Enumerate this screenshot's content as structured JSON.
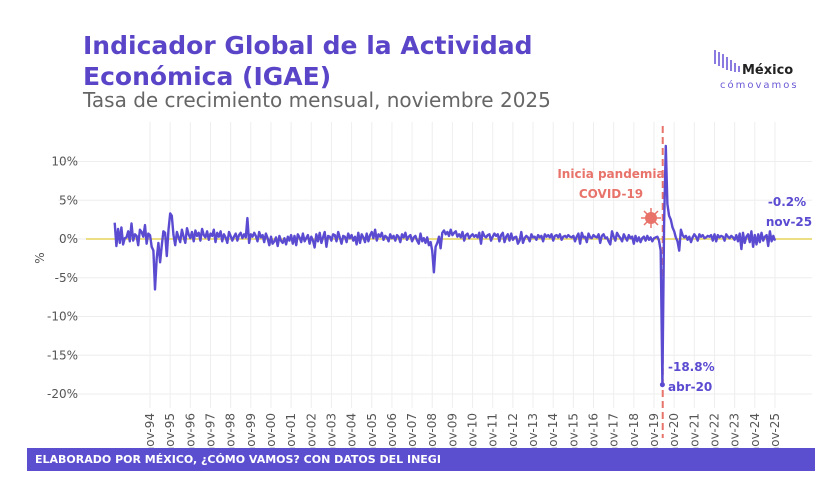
{
  "header": {
    "title_line1": "Indicador Global de la Actividad",
    "title_line2": "Económica (IGAE)",
    "subtitle": "Tasa de crecimiento mensual, noviembre 2025"
  },
  "logo": {
    "text1": "México",
    "text2": "cómovamos"
  },
  "footer": {
    "text": "ELABORADO POR MÉXICO, ¿CÓMO VAMOS? CON DATOS DEL INEGI"
  },
  "colors": {
    "line": "#5a4bd1",
    "title": "#5a45c8",
    "zero_line": "#e6d35a",
    "covid_line": "#e8736a",
    "footer": "#5b4fd0"
  },
  "chart_data": {
    "type": "line",
    "ylabel": "%",
    "ylim": [
      -20,
      12
    ],
    "yticks": [
      10,
      5,
      0,
      -5,
      -10,
      -15,
      -20
    ],
    "ytick_labels": [
      "10%",
      "5%",
      "0%",
      "-5%",
      "-10%",
      "-15%",
      "-20%"
    ],
    "xtick_labels": [
      "nov-94",
      "nov-95",
      "nov-96",
      "nov-97",
      "nov-98",
      "nov-99",
      "nov-00",
      "nov-01",
      "nov-02",
      "nov-03",
      "nov-04",
      "nov-05",
      "nov-06",
      "nov-07",
      "nov-08",
      "nov-09",
      "nov-10",
      "nov-11",
      "nov-12",
      "nov-13",
      "nov-14",
      "nov-15",
      "nov-16",
      "nov-17",
      "nov-18",
      "nov-19",
      "nov-20",
      "nov-21",
      "nov-22",
      "nov-23",
      "nov-24",
      "nov-25"
    ],
    "grid": true,
    "x_start": "feb-93",
    "frequency": "monthly",
    "values": [
      2.1,
      -0.9,
      1.3,
      -0.5,
      1.5,
      -0.7,
      0.1,
      0.2,
      1.0,
      -0.3,
      2.0,
      -0.2,
      0.6,
      0.4,
      -0.8,
      1.2,
      0.9,
      0.3,
      1.8,
      -0.6,
      0.7,
      0.5,
      -1.0,
      -1.5,
      -6.5,
      -2.5,
      -0.5,
      -3.0,
      -0.8,
      1.0,
      0.8,
      -2.2,
      1.2,
      3.3,
      3.0,
      0.5,
      -0.8,
      0.9,
      0.2,
      -0.4,
      1.2,
      0.3,
      -0.5,
      1.4,
      0.6,
      0.1,
      0.9,
      -0.3,
      1.1,
      0.4,
      0.8,
      -0.2,
      1.3,
      0.5,
      0.2,
      1.0,
      -0.1,
      0.7,
      0.4,
      1.2,
      -0.4,
      0.8,
      0.3,
      1.0,
      -0.3,
      0.6,
      0.2,
      -0.5,
      0.9,
      0.4,
      -0.2,
      0.3,
      0.7,
      -0.2,
      0.5,
      0.8,
      0.1,
      0.6,
      0.2,
      2.7,
      -0.5,
      0.6,
      0.3,
      0.8,
      0.4,
      -0.3,
      0.9,
      0.2,
      0.5,
      -0.4,
      0.7,
      0.1,
      -0.8,
      0.3,
      -0.6,
      -0.3,
      0.2,
      -0.9,
      0.4,
      -0.2,
      -0.5,
      0.1,
      -0.7,
      0.3,
      -0.2,
      0.5,
      -0.6,
      0.4,
      -0.8,
      0.6,
      0.2,
      -0.4,
      0.7,
      -0.3,
      0.1,
      0.5,
      -0.6,
      0.3,
      -0.2,
      -1.1,
      0.6,
      -0.3,
      0.8,
      -0.5,
      0.2,
      0.9,
      -1.0,
      0.4,
      0.3,
      -0.2,
      0.6,
      0.5,
      -0.3,
      0.9,
      0.2,
      -0.6,
      0.4,
      0.3,
      -0.4,
      0.7,
      0.1,
      0.5,
      -0.2,
      0.3,
      -0.7,
      0.8,
      -0.5,
      0.6,
      0.2,
      -0.4,
      0.7,
      -0.3,
      0.5,
      0.9,
      0.1,
      1.2,
      -0.2,
      0.6,
      0.3,
      0.8,
      -0.1,
      0.4,
      0.2,
      -0.3,
      0.6,
      0.1,
      0.4,
      -0.2,
      0.5,
      0.3,
      -0.4,
      0.6,
      0.2,
      0.8,
      -0.1,
      0.3,
      0.5,
      -0.3,
      0.2,
      0.4,
      -0.2,
      -0.6,
      0.7,
      -0.3,
      0.1,
      -0.5,
      0.2,
      -0.8,
      -0.4,
      -1.5,
      -4.3,
      -1.0,
      -0.5,
      0.3,
      -1.2,
      0.8,
      1.1,
      0.6,
      0.9,
      0.4,
      1.2,
      0.5,
      0.8,
      1.0,
      0.3,
      0.6,
      0.2,
      0.9,
      -0.2,
      0.5,
      0.7,
      0.1,
      0.4,
      0.6,
      0.3,
      0.5,
      0.2,
      0.8,
      -0.6,
      0.9,
      0.4,
      0.2,
      0.5,
      0.6,
      -0.2,
      0.3,
      0.7,
      0.4,
      0.6,
      -0.3,
      0.5,
      0.8,
      -0.4,
      0.3,
      0.6,
      -0.2,
      0.7,
      -0.1,
      0.2,
      0.3,
      -0.6,
      -0.2,
      0.9,
      -0.5,
      0.1,
      0.4,
      0.2,
      -0.3,
      0.6,
      0.2,
      0.3,
      -0.1,
      0.5,
      0.2,
      0.4,
      -0.3,
      0.6,
      0.3,
      0.5,
      0.2,
      0.6,
      -0.2,
      0.4,
      0.5,
      0.2,
      0.6,
      -0.1,
      0.3,
      0.4,
      0.2,
      0.5,
      0.3,
      0.2,
      0.4,
      -0.3,
      0.3,
      0.7,
      -0.6,
      0.8,
      0.2,
      0.3,
      -0.4,
      0.7,
      0.2,
      0.1,
      0.5,
      0.3,
      0.2,
      0.6,
      -0.5,
      0.4,
      0.6,
      0.1,
      0.2,
      -0.3,
      -0.7,
      1.0,
      0.3,
      -0.2,
      0.8,
      0.4,
      0.1,
      -0.3,
      0.6,
      0.2,
      -0.2,
      0.5,
      0.1,
      0.3,
      -0.6,
      0.4,
      -0.3,
      0.2,
      -0.4,
      0.1,
      0.3,
      -0.2,
      0.4,
      -0.1,
      0.2,
      -0.3,
      0.1,
      0.2,
      0.3,
      -0.2,
      -1.5,
      -18.8,
      2.0,
      12.0,
      4.5,
      3.0,
      2.5,
      1.5,
      1.0,
      0.2,
      -0.3,
      -1.5,
      1.2,
      0.5,
      0.2,
      0.4,
      -0.1,
      0.3,
      -0.4,
      0.2,
      0.6,
      0.3,
      -0.2,
      0.6,
      0.3,
      0.5,
      0.1,
      0.2,
      0.4,
      0.3,
      0.5,
      -0.2,
      0.6,
      -0.3,
      0.5,
      0.2,
      0.4,
      0.3,
      -0.2,
      0.6,
      0.3,
      0.1,
      0.4,
      0.2,
      -0.1,
      0.5,
      -0.3,
      0.7,
      -1.3,
      0.8,
      -0.5,
      0.3,
      0.6,
      -0.4,
      1.0,
      -1.0,
      0.5,
      -0.7,
      0.6,
      -0.4,
      0.8,
      -0.2,
      0.3,
      0.5,
      -0.9,
      1.0,
      -0.3,
      0.4,
      -0.2
    ],
    "annotations": {
      "covid_line_date": "mar-20",
      "covid_line1": "Inicia pandemia",
      "covid_line2": "COVID-19",
      "min_value": "-18.8%",
      "min_date": "abr-20",
      "last_value": "-0.2%",
      "last_date": "nov-25"
    }
  }
}
